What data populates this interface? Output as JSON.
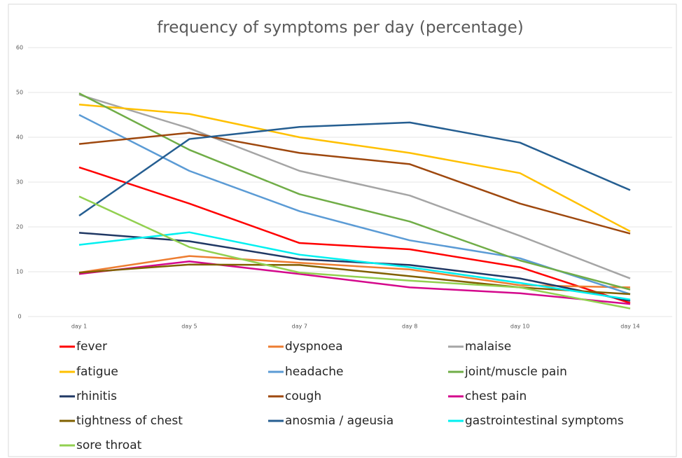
{
  "chart_data": {
    "type": "line",
    "title": "frequency of symptoms per day (percentage)",
    "categories": [
      "day 1",
      "day 5",
      "day 7",
      "day 8",
      "day 10",
      "day 14"
    ],
    "ylim": [
      0,
      60
    ],
    "yticks": [
      0,
      10,
      20,
      30,
      40,
      50,
      60
    ],
    "grid": true,
    "legend": "bottom",
    "series": [
      {
        "name": "fever",
        "color": "#ff0000",
        "values": [
          33.3,
          25.2,
          16.4,
          15,
          11,
          3
        ]
      },
      {
        "name": "dyspnoea",
        "color": "#ed7d31",
        "values": [
          9.8,
          13.5,
          12,
          10.5,
          7,
          6.5
        ]
      },
      {
        "name": "malaise",
        "color": "#a5a5a5",
        "values": [
          49.5,
          42,
          32.5,
          27,
          18,
          8.5
        ]
      },
      {
        "name": "fatigue",
        "color": "#ffc000",
        "values": [
          47.3,
          45.2,
          40,
          36.5,
          32,
          19
        ]
      },
      {
        "name": "headache",
        "color": "#5b9bd5",
        "values": [
          45,
          32.5,
          23.5,
          17,
          13,
          5
        ]
      },
      {
        "name": "joint/muscle pain",
        "color": "#70ad47",
        "values": [
          49.8,
          37.2,
          27.3,
          21.2,
          12.5,
          6
        ]
      },
      {
        "name": "rhinitis",
        "color": "#203864",
        "values": [
          18.7,
          16.8,
          12.8,
          11.5,
          8.5,
          3.5
        ]
      },
      {
        "name": "cough",
        "color": "#9e480e",
        "values": [
          38.5,
          41,
          36.5,
          34,
          25.2,
          18.5
        ]
      },
      {
        "name": "chest pain",
        "color": "#d4088c",
        "values": [
          9.5,
          12.3,
          9.5,
          6.5,
          5.2,
          2.8
        ]
      },
      {
        "name": "tightness of chest",
        "color": "#806000",
        "values": [
          9.8,
          11.6,
          11.5,
          9,
          6.5,
          5
        ]
      },
      {
        "name": "anosmia / ageusia",
        "color": "#255e91",
        "values": [
          22.5,
          39.6,
          42.3,
          43.3,
          38.8,
          28.2
        ]
      },
      {
        "name": "gastrointestinal symptoms",
        "color": "#00f0f0",
        "values": [
          16,
          18.8,
          13.8,
          11,
          7.5,
          3.8
        ]
      },
      {
        "name": "sore throat",
        "color": "#92d050",
        "values": [
          26.8,
          15.5,
          9.8,
          8,
          6.5,
          1.8
        ]
      }
    ]
  }
}
